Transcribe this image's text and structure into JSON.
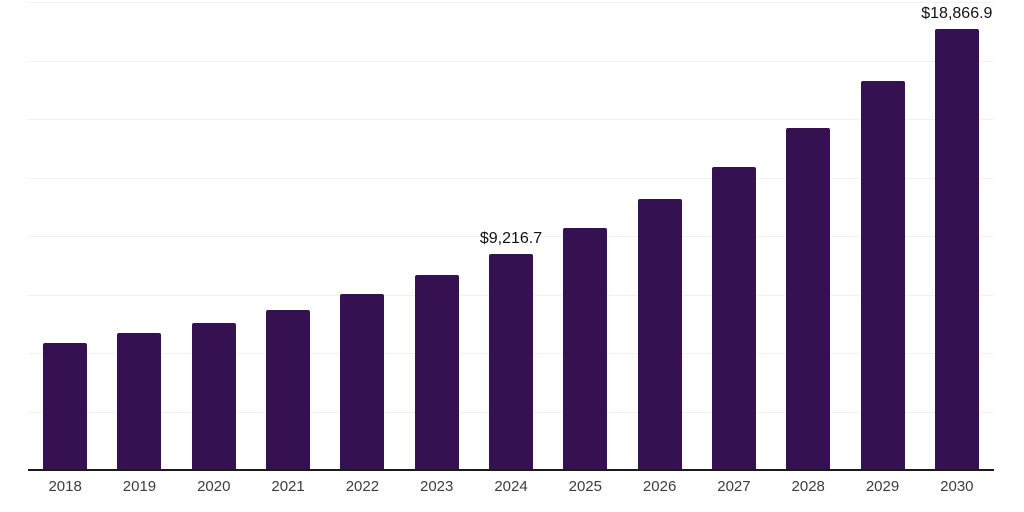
{
  "chart_data": {
    "type": "bar",
    "title": "",
    "xlabel": "",
    "ylabel": "",
    "categories": [
      "2018",
      "2019",
      "2020",
      "2021",
      "2022",
      "2023",
      "2024",
      "2025",
      "2026",
      "2027",
      "2028",
      "2029",
      "2030"
    ],
    "values": [
      5440,
      5840,
      6300,
      6840,
      7540,
      8350,
      9216.7,
      10330,
      11580,
      12960,
      14600,
      16620,
      18866.9
    ],
    "labeled_points": [
      {
        "category": "2024",
        "label": "$9,216.7"
      },
      {
        "category": "2030",
        "label": "$18,866.9"
      }
    ],
    "ylim": [
      0,
      20000
    ],
    "gridline_interval": 2500,
    "grid": true,
    "legend": false,
    "y_axis_labels_visible": false,
    "colors": {
      "bar": "#361151",
      "grid": "#f1f1f3",
      "axis": "#1a1a1a",
      "value_label": "#111111",
      "tick_label": "#3d3d3d",
      "background": "#ffffff"
    }
  }
}
